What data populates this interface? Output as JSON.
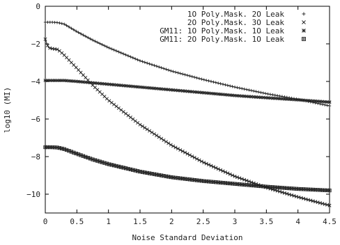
{
  "chart_data": {
    "type": "line",
    "xlabel": "Noise Standard Deviation",
    "ylabel": "log10 (MI)",
    "xlim": [
      0,
      4.5
    ],
    "ylim": [
      -11,
      0
    ],
    "xticks": [
      0,
      0.5,
      1,
      1.5,
      2,
      2.5,
      3,
      3.5,
      4,
      4.5
    ],
    "xtick_labels": [
      "0",
      "0.5",
      "1",
      "1.5",
      "2",
      "2.5",
      "3",
      "3.5",
      "4",
      "4.5"
    ],
    "yticks": [
      0,
      -2,
      -4,
      -6,
      -8,
      -10
    ],
    "ytick_labels": [
      "0",
      "−2",
      "−4",
      "−6",
      "−8",
      "−10"
    ],
    "grid": false,
    "legend_position": "top-right",
    "series": [
      {
        "name": "1O Poly.Mask. 2O Leak",
        "marker": "plus",
        "x": [
          0,
          0.1,
          0.2,
          0.3,
          0.5,
          0.75,
          1.0,
          1.5,
          2.0,
          2.5,
          3.0,
          3.5,
          4.0,
          4.5
        ],
        "y": [
          -0.85,
          -0.85,
          -0.87,
          -0.95,
          -1.35,
          -1.8,
          -2.2,
          -2.9,
          -3.45,
          -3.9,
          -4.3,
          -4.65,
          -4.95,
          -5.3
        ]
      },
      {
        "name": "2O Poly.Mask. 3O Leak",
        "marker": "x",
        "x": [
          0,
          0.05,
          0.1,
          0.2,
          0.3,
          0.5,
          0.75,
          1.0,
          1.5,
          2.0,
          2.5,
          3.0,
          3.5,
          4.0,
          4.5
        ],
        "y": [
          -1.75,
          -2.2,
          -2.25,
          -2.3,
          -2.6,
          -3.3,
          -4.2,
          -5.0,
          -6.3,
          -7.4,
          -8.3,
          -9.05,
          -9.65,
          -10.15,
          -10.6
        ]
      },
      {
        "name": "GM11: 1O Poly.Mask. 1O Leak",
        "marker": "star",
        "x": [
          0,
          0.3,
          0.5,
          1.0,
          1.5,
          2.0,
          2.5,
          3.0,
          3.5,
          4.0,
          4.5
        ],
        "y": [
          -3.95,
          -3.95,
          -4.0,
          -4.15,
          -4.3,
          -4.45,
          -4.6,
          -4.75,
          -4.87,
          -4.98,
          -5.1
        ]
      },
      {
        "name": "GM11: 2O Poly.Mask. 1O Leak",
        "marker": "square",
        "x": [
          0,
          0.1,
          0.2,
          0.3,
          0.5,
          0.75,
          1.0,
          1.5,
          2.0,
          2.5,
          3.0,
          3.5,
          4.0,
          4.5
        ],
        "y": [
          -7.5,
          -7.5,
          -7.52,
          -7.6,
          -7.85,
          -8.15,
          -8.4,
          -8.8,
          -9.1,
          -9.3,
          -9.45,
          -9.6,
          -9.72,
          -9.8
        ]
      }
    ]
  }
}
